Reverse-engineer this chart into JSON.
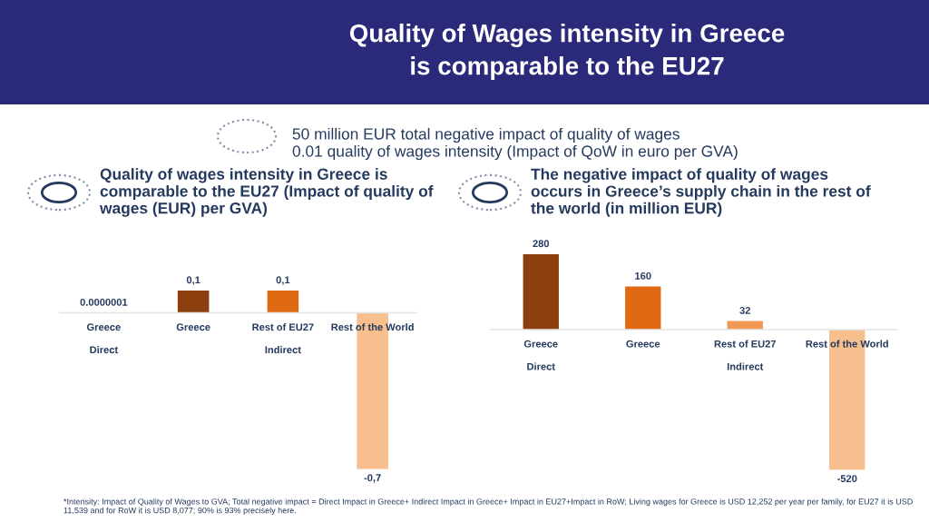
{
  "chart_data": [
    {
      "type": "other",
      "title": "Quality of Wages intensity in Greece\nis comparable to the EU27",
      "annotations": [
        "50 million EUR total negative impact of quality of wages",
        "0.01 quality of wages intensity (Impact of QoW in euro per GVA)",
        "*Intensity: Impact of Quality of Wages to GVA; Total negative impact = Direct Impact in Greece+ Indirect Impact in Greece+ Impact in EU27+Impact in RoW; Living wages for Greece is USD 12,252 per year per family, for EU27 it is USD 11,539 and for RoW it is USD 8,077; 90% is 93% precisely here."
      ]
    },
    {
      "type": "bar",
      "title": "Quality of wages intensity in Greece is\ncomparable to the EU27 (Impact of quality of\nwages (EUR) per GVA)",
      "categories": [
        "Greece",
        "Greece",
        "Rest of EU27",
        "Rest of the World"
      ],
      "values": [
        1e-07,
        0.1,
        0.1,
        -0.7
      ],
      "colors": [
        "#8b3f0e",
        "#8b3f0e",
        "#e06a14",
        "#f7be8e"
      ],
      "value_labels": [
        "0.0000001",
        "0,1",
        "0,1",
        "-0,7"
      ],
      "annotations": [
        "Direct",
        "Indirect"
      ]
    },
    {
      "type": "bar",
      "title": "The negative impact of quality of wages\noccurs in Greece’s supply chain in the rest of\nthe world (in million EUR)",
      "categories": [
        "Greece",
        "Greece",
        "Rest of EU27",
        "Rest of the World"
      ],
      "values": [
        280,
        160,
        32,
        -520
      ],
      "colors": [
        "#8b3f0e",
        "#e06a14",
        "#f29a55",
        "#f7be8e"
      ],
      "data_labels": true,
      "annotations": [
        "Direct",
        "Indirect"
      ]
    }
  ]
}
